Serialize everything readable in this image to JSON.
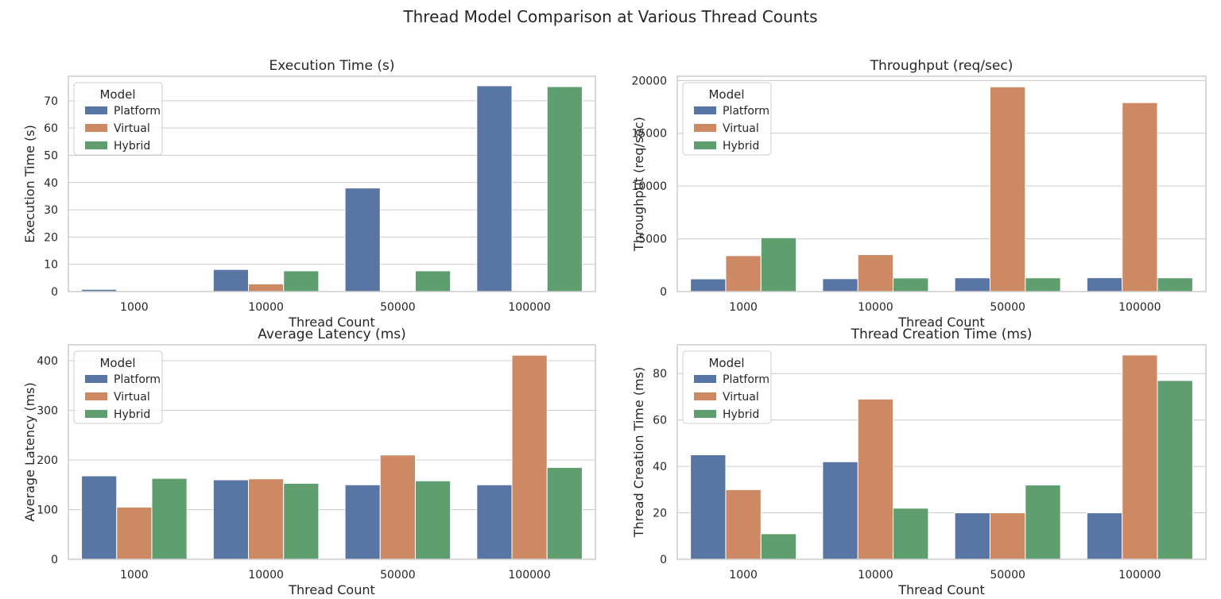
{
  "title": "Thread Model Comparison at Various Thread Counts",
  "legend": {
    "title": "Model",
    "placement": "upper-left",
    "entries": [
      {
        "name": "Platform",
        "color": "#5975a4"
      },
      {
        "name": "Virtual",
        "color": "#cc8963"
      },
      {
        "name": "Hybrid",
        "color": "#5f9e6e"
      }
    ]
  },
  "chart_data": [
    {
      "type": "bar",
      "title": "Execution Time (s)",
      "xlabel": "Thread Count",
      "ylabel": "Execution Time (s)",
      "categories": [
        "1000",
        "10000",
        "50000",
        "100000"
      ],
      "ylim": [
        0,
        79
      ],
      "yticks": [
        0,
        10,
        20,
        30,
        40,
        50,
        60,
        70
      ],
      "grid": true,
      "legend_placement": "top-left",
      "series": [
        {
          "name": "Platform",
          "values": [
            0.8,
            8.1,
            38.0,
            75.5
          ]
        },
        {
          "name": "Virtual",
          "values": [
            0.1,
            2.8,
            0.2,
            0.3
          ]
        },
        {
          "name": "Hybrid",
          "values": [
            0.1,
            7.6,
            7.6,
            75.2
          ]
        }
      ]
    },
    {
      "type": "bar",
      "title": "Throughput (req/sec)",
      "xlabel": "Thread Count",
      "ylabel": "Throughput (req/sec)",
      "categories": [
        "1000",
        "10000",
        "50000",
        "100000"
      ],
      "ylim": [
        0,
        20400
      ],
      "yticks": [
        0,
        5000,
        10000,
        15000,
        20000
      ],
      "grid": true,
      "legend_placement": "top-left",
      "series": [
        {
          "name": "Platform",
          "values": [
            1200,
            1220,
            1300,
            1310
          ]
        },
        {
          "name": "Virtual",
          "values": [
            3400,
            3500,
            19400,
            17900
          ]
        },
        {
          "name": "Hybrid",
          "values": [
            5100,
            1290,
            1300,
            1300
          ]
        }
      ]
    },
    {
      "type": "bar",
      "title": "Average Latency (ms)",
      "xlabel": "Thread Count",
      "ylabel": "Average Latency (ms)",
      "categories": [
        "1000",
        "10000",
        "50000",
        "100000"
      ],
      "ylim": [
        0,
        432
      ],
      "yticks": [
        0,
        100,
        200,
        300,
        400
      ],
      "grid": true,
      "legend_placement": "top-left",
      "series": [
        {
          "name": "Platform",
          "values": [
            168,
            160,
            150,
            150
          ]
        },
        {
          "name": "Virtual",
          "values": [
            105,
            162,
            210,
            411
          ]
        },
        {
          "name": "Hybrid",
          "values": [
            163,
            153,
            158,
            185
          ]
        }
      ]
    },
    {
      "type": "bar",
      "title": "Thread Creation Time (ms)",
      "xlabel": "Thread Count",
      "ylabel": "Thread Creation Time (ms)",
      "categories": [
        "1000",
        "10000",
        "50000",
        "100000"
      ],
      "ylim": [
        0,
        92.4
      ],
      "yticks": [
        0,
        20,
        40,
        60,
        80
      ],
      "grid": true,
      "legend_placement": "top-left",
      "series": [
        {
          "name": "Platform",
          "values": [
            45,
            42,
            20,
            20
          ]
        },
        {
          "name": "Virtual",
          "values": [
            30,
            69,
            20,
            88
          ]
        },
        {
          "name": "Hybrid",
          "values": [
            11,
            22,
            32,
            77
          ]
        }
      ]
    }
  ]
}
